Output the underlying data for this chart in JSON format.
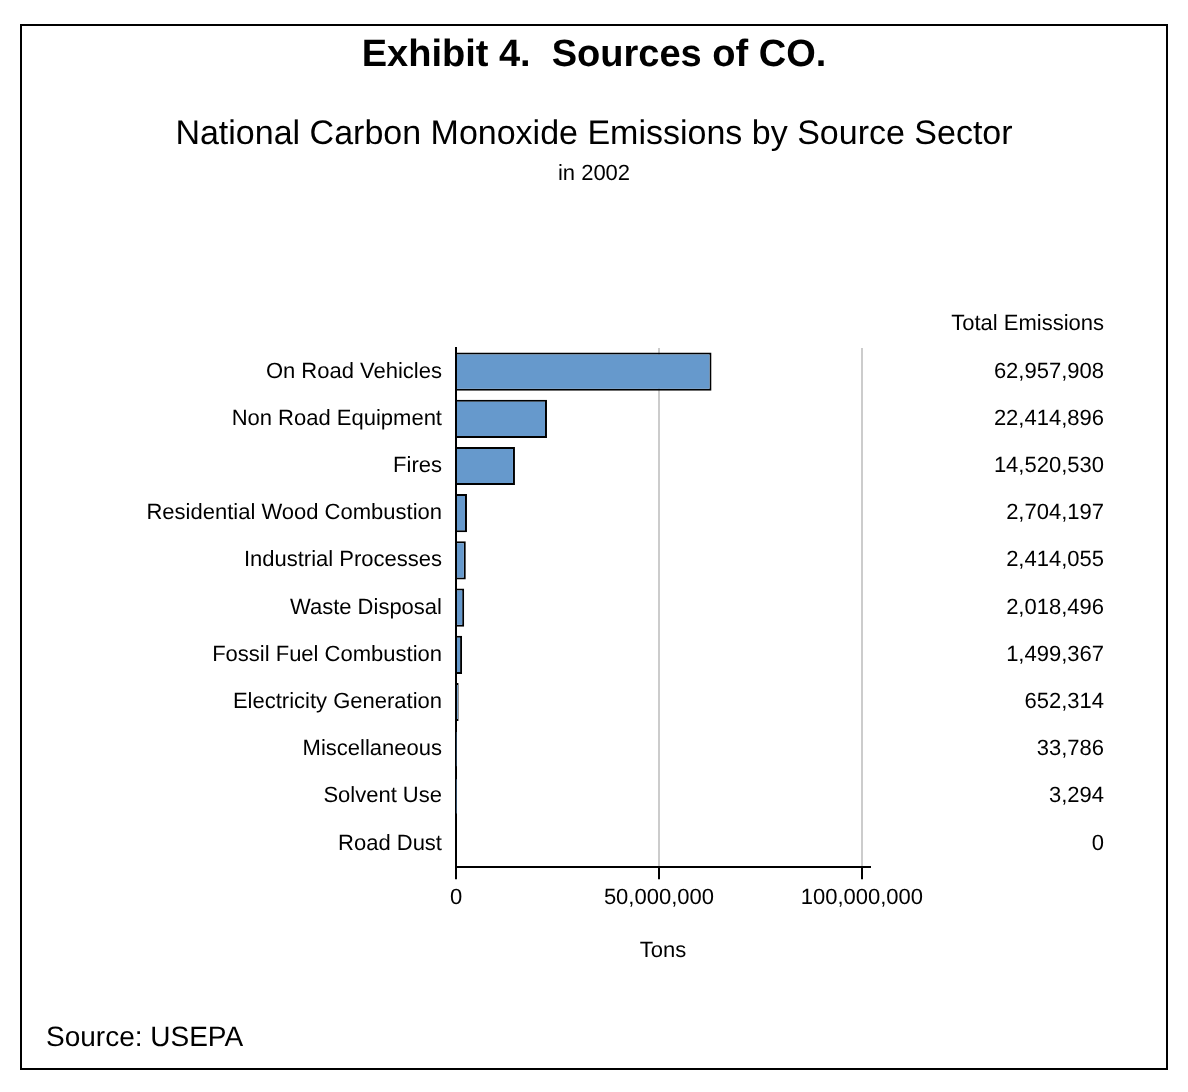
{
  "chart_data": {
    "type": "bar",
    "orientation": "horizontal",
    "title": "Exhibit 4.  Sources of CO.",
    "subtitle": "National Carbon Monoxide Emissions by Source Sector",
    "xlabel": "Tons",
    "categories": [
      "On Road Vehicles",
      "Non Road Equipment",
      "Fires",
      "Residential Wood Combustion",
      "Industrial Processes",
      "Waste Disposal",
      "Fossil Fuel Combustion",
      "Electricity Generation",
      "Miscellaneous",
      "Solvent Use",
      "Road Dust"
    ],
    "values": [
      62957908,
      22414896,
      14520530,
      2704197,
      2414055,
      2018496,
      1499367,
      652314,
      33786,
      3294,
      0
    ],
    "color": "#6699cc",
    "value_labels": [
      "62,957,908",
      "22,414,896",
      "14,520,530",
      "2,704,197",
      "2,414,055",
      "2,018,496",
      "1,499,367",
      "652,314",
      "33,786",
      "3,294",
      "0"
    ],
    "xlim": [
      0,
      102000000
    ],
    "xticks": [
      0,
      {
        "value": 50000000,
        "label": "50,000,000"
      },
      {
        "value": 100000000,
        "label": "100,000,000"
      }
    ],
    "grid": "x",
    "legend": false,
    "annotations": [
      "in 2002",
      "Total Emissions",
      "Source: USEPA"
    ]
  }
}
